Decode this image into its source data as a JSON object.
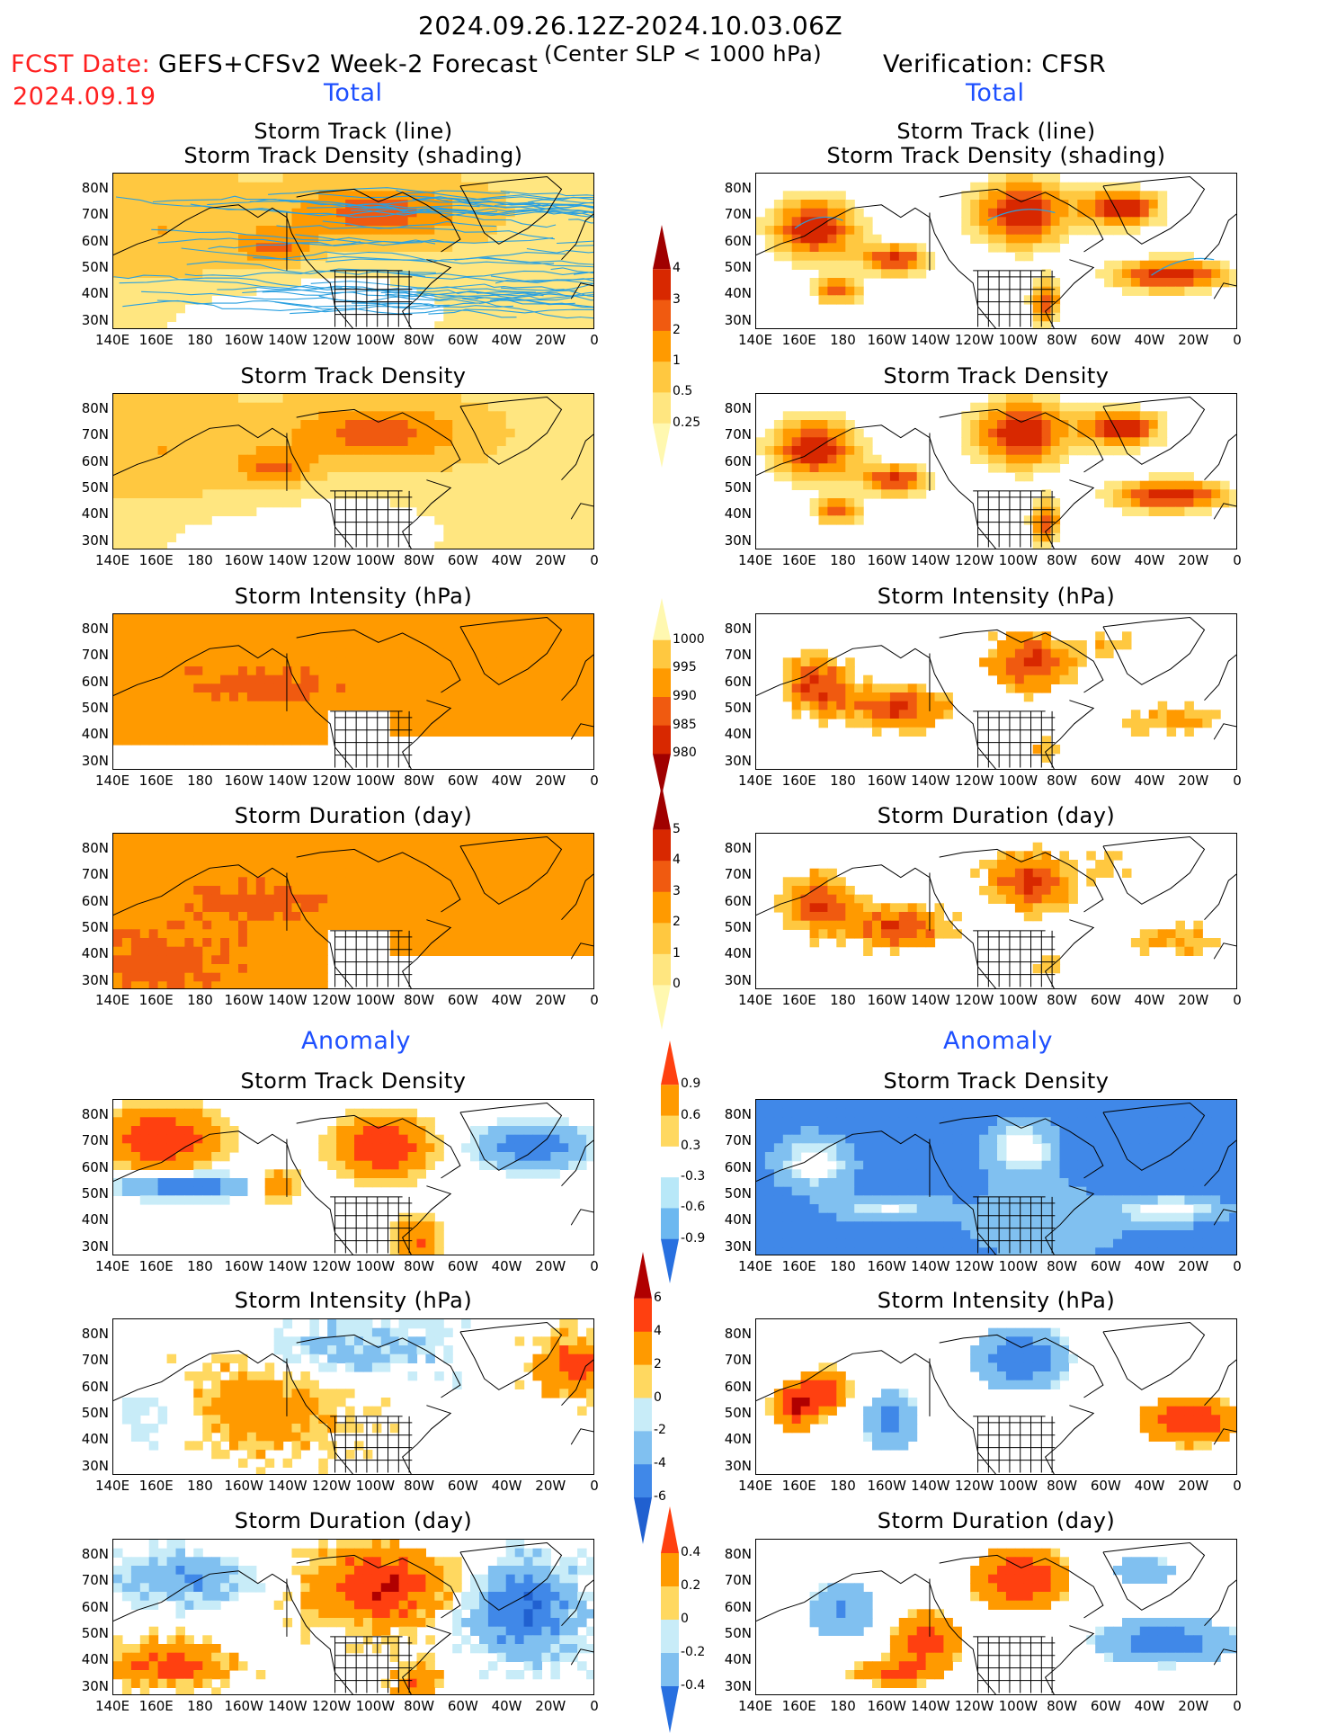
{
  "header": {
    "date_range": "2024.09.26.12Z-2024.10.03.06Z",
    "fcst_label": "FCST Date:",
    "fcst_date": "2024.09.19",
    "model": "GEFS+CFSv2 Week-2 Forecast",
    "criterion": "(Center SLP < 1000 hPa)",
    "verification": "Verification: CFSR"
  },
  "sections": {
    "total_left": "Total",
    "total_right": "Total",
    "anomaly_left": "Anomaly",
    "anomaly_right": "Anomaly"
  },
  "panel_titles": {
    "track_line": "Storm Track (line)",
    "track_density_shading": "Storm Track Density (shading)",
    "track_density": "Storm Track Density",
    "intensity": "Storm Intensity (hPa)",
    "duration": "Storm Duration (day)"
  },
  "axes": {
    "y_ticks": [
      "80N",
      "70N",
      "60N",
      "50N",
      "40N",
      "30N"
    ],
    "x_ticks": [
      "140E",
      "160E",
      "180",
      "160W",
      "140W",
      "120W",
      "100W",
      "80W",
      "60W",
      "40W",
      "20W",
      "0"
    ]
  },
  "colorbars": {
    "density_total": {
      "labels": [
        "4",
        "3",
        "2",
        "1",
        "0.5",
        "0.25"
      ],
      "colors": [
        "#a00000",
        "#d82800",
        "#f05a10",
        "#ff9a00",
        "#ffc840",
        "#ffe680",
        "#fff8b0"
      ]
    },
    "intensity_total": {
      "labels": [
        "1000",
        "995",
        "990",
        "985",
        "980"
      ],
      "colors": [
        "#fff8b0",
        "#ffc840",
        "#ff9a00",
        "#f05a10",
        "#d82800",
        "#a00000"
      ]
    },
    "duration_total": {
      "labels": [
        "5",
        "4",
        "3",
        "2",
        "1",
        "0"
      ],
      "colors": [
        "#a00000",
        "#d82800",
        "#f05a10",
        "#ff9a00",
        "#ffc840",
        "#ffe680",
        "#fff8b0"
      ]
    },
    "density_anom": {
      "labels": [
        "0.9",
        "0.6",
        "0.3",
        "-0.3",
        "-0.6",
        "-0.9"
      ],
      "colors": [
        "#ff4010",
        "#ff9a00",
        "#ffd860",
        "#ffffff",
        "#b8e8f8",
        "#6cb8f0",
        "#2870e0"
      ]
    },
    "intensity_anom": {
      "labels": [
        "6",
        "4",
        "2",
        "0",
        "-2",
        "-4",
        "-6"
      ],
      "colors": [
        "#b00000",
        "#ff4010",
        "#ff9a00",
        "#ffd860",
        "#c8ecf8",
        "#80c0f0",
        "#4088e8",
        "#2060d0"
      ]
    },
    "duration_anom": {
      "labels": [
        "0.4",
        "0.2",
        "0",
        "-0.2",
        "-0.4"
      ],
      "colors": [
        "#ff4010",
        "#ff9a00",
        "#ffd860",
        "#c8ecf8",
        "#80c0f0",
        "#2870e0"
      ]
    }
  }
}
